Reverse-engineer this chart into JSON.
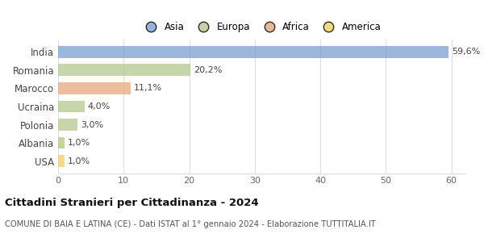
{
  "categories": [
    "India",
    "Romania",
    "Marocco",
    "Ucraina",
    "Polonia",
    "Albania",
    "USA"
  ],
  "values": [
    59.6,
    20.2,
    11.1,
    4.0,
    3.0,
    1.0,
    1.0
  ],
  "labels": [
    "59,6%",
    "20,2%",
    "11,1%",
    "4,0%",
    "3,0%",
    "1,0%",
    "1,0%"
  ],
  "colors": [
    "#7b9fd4",
    "#b5c98e",
    "#e8a87c",
    "#b5c98e",
    "#b5c98e",
    "#b0c87a",
    "#f0d060"
  ],
  "legend_labels": [
    "Asia",
    "Europa",
    "Africa",
    "America"
  ],
  "legend_colors": [
    "#7b9fd4",
    "#b5c98e",
    "#e8a87c",
    "#f0d060"
  ],
  "title": "Cittadini Stranieri per Cittadinanza - 2024",
  "subtitle": "COMUNE DI BAIA E LATINA (CE) - Dati ISTAT al 1° gennaio 2024 - Elaborazione TUTTITALIA.IT",
  "xlim": [
    0,
    62
  ],
  "xticks": [
    0,
    10,
    20,
    30,
    40,
    50,
    60
  ],
  "background_color": "#ffffff",
  "grid_color": "#dddddd"
}
